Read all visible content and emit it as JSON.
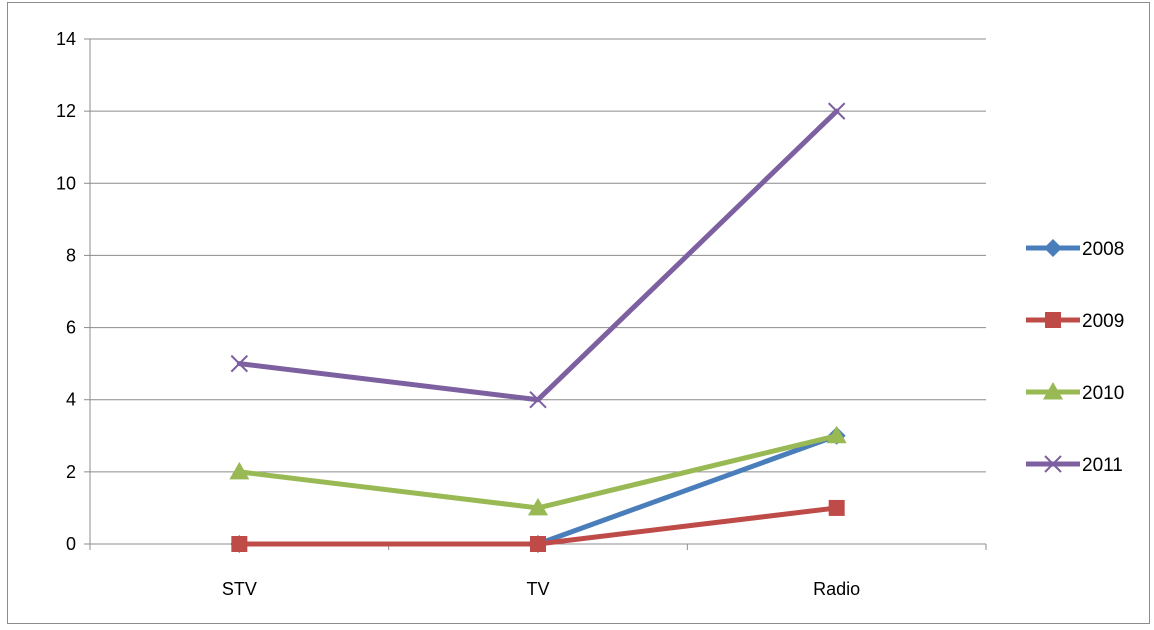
{
  "chart_data": {
    "type": "line",
    "title": "",
    "xlabel": "",
    "ylabel": "",
    "categories": [
      "STV",
      "TV",
      "Radio"
    ],
    "ylim": [
      0,
      14
    ],
    "yticks": [
      0,
      2,
      4,
      6,
      8,
      10,
      12,
      14
    ],
    "grid": true,
    "legend_position": "right",
    "series": [
      {
        "name": "2008",
        "values": [
          0,
          0,
          3
        ],
        "color": "#4a7ebb",
        "marker": "diamond"
      },
      {
        "name": "2009",
        "values": [
          0,
          0,
          1
        ],
        "color": "#be4b48",
        "marker": "square"
      },
      {
        "name": "2010",
        "values": [
          2,
          1,
          3
        ],
        "color": "#98b954",
        "marker": "triangle"
      },
      {
        "name": "2011",
        "values": [
          5,
          4,
          12
        ],
        "color": "#7d60a0",
        "marker": "x"
      }
    ]
  }
}
